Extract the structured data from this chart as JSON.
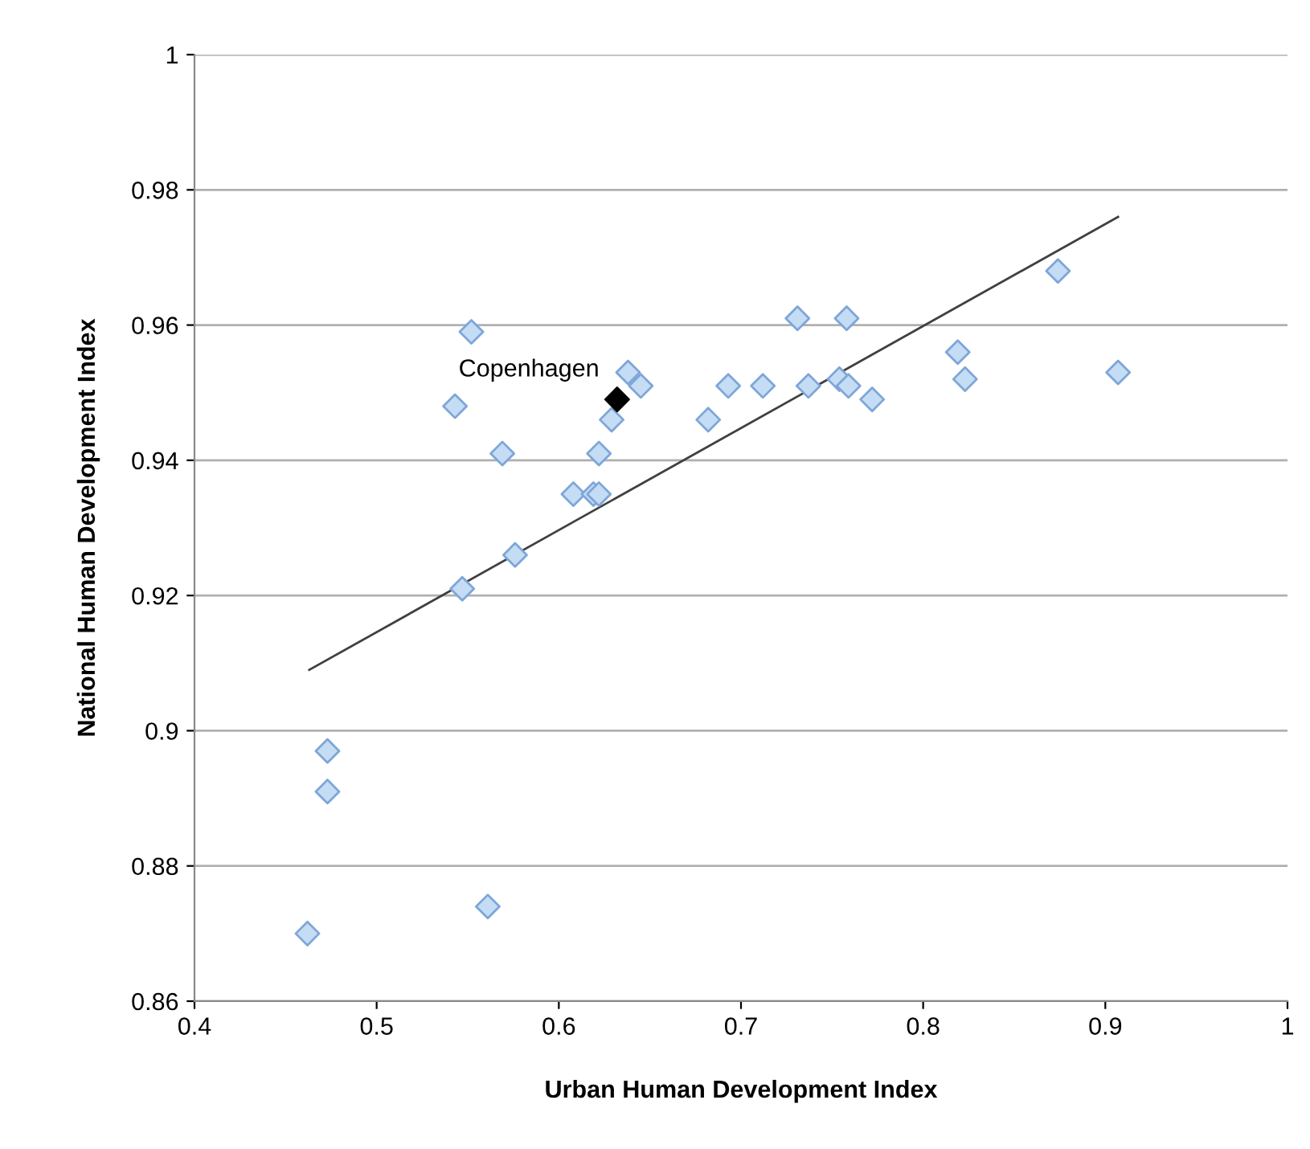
{
  "chart_data": {
    "type": "scatter",
    "xlabel": "Urban Human Development Index",
    "ylabel": "National Human Development Index",
    "xlim": [
      0.4,
      1
    ],
    "xticks": [
      0.4,
      0.5,
      0.6,
      0.7,
      0.8,
      0.9,
      1
    ],
    "ylim": [
      0.86,
      1
    ],
    "yticks": [
      0.86,
      0.88,
      0.9,
      0.92,
      0.94,
      0.96,
      0.98,
      1
    ],
    "grid": "y",
    "marker": "diamond",
    "series": [
      {
        "color": "#c5dcf5",
        "x": [
          0.552,
          0.543,
          0.569,
          0.608,
          0.619,
          0.622,
          0.622,
          0.629,
          0.638,
          0.645,
          0.576,
          0.547,
          0.682,
          0.693,
          0.712,
          0.731,
          0.737,
          0.754,
          0.759,
          0.758,
          0.772,
          0.819,
          0.823,
          0.874,
          0.907,
          0.473,
          0.473,
          0.462,
          0.561
        ],
        "values": [
          0.959,
          0.948,
          0.941,
          0.935,
          0.935,
          0.935,
          0.941,
          0.946,
          0.953,
          0.951,
          0.926,
          0.921,
          0.946,
          0.951,
          0.951,
          0.961,
          0.951,
          0.952,
          0.951,
          0.961,
          0.949,
          0.956,
          0.952,
          0.968,
          0.953,
          0.897,
          0.891,
          0.87,
          0.874
        ]
      },
      {
        "color": "#000000",
        "x": [
          0.632
        ],
        "values": [
          0.949
        ]
      },
      {
        "type": "line",
        "color": "#404040",
        "marker": "none",
        "x": [
          0.463,
          0.907
        ],
        "values": [
          0.909,
          0.976
        ]
      }
    ],
    "annotations": [
      {
        "text": "Copenhagen",
        "x": 0.632,
        "y": 0.949
      }
    ]
  }
}
